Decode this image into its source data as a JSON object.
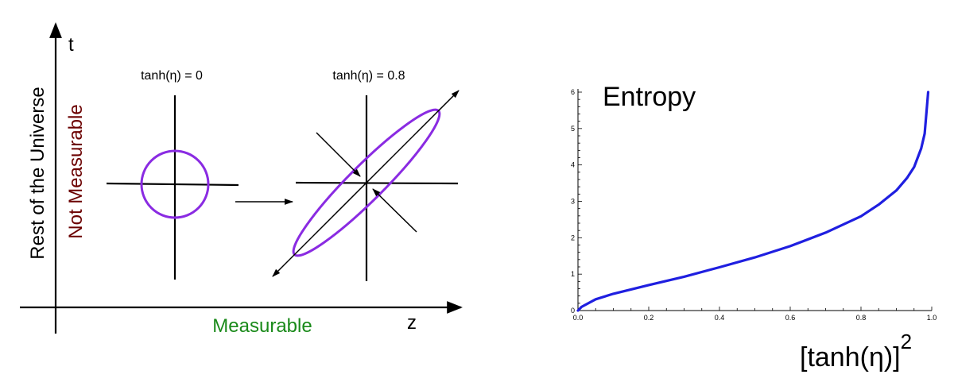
{
  "diagram": {
    "t_axis_label": "t",
    "z_axis_label": "z",
    "vertical_label_black": "Rest of the Universe",
    "vertical_label_red": "Not Measurable",
    "horizontal_label_green": "Measurable",
    "panel_left_label": "tanh(η) = 0",
    "panel_right_label": "tanh(η) = 0.8",
    "colors": {
      "ellipse": "#8a2be2",
      "red_label": "#6b0000",
      "green_label": "#1a8a1a",
      "axes": "#000000"
    }
  },
  "chart_data": {
    "type": "line",
    "title": "Entropy",
    "xlabel": "[tanh(η)]",
    "xlabel_superscript": "2",
    "xlim": [
      0.0,
      1.0
    ],
    "ylim": [
      0,
      6
    ],
    "x_ticks": [
      "0.0",
      "0.2",
      "0.4",
      "0.6",
      "0.8",
      "1.0"
    ],
    "y_ticks": [
      "0",
      "1",
      "2",
      "3",
      "4",
      "5",
      "6"
    ],
    "series": [
      {
        "color": "#1f1fe0",
        "x": [
          0.0,
          0.01,
          0.05,
          0.1,
          0.2,
          0.3,
          0.4,
          0.5,
          0.6,
          0.7,
          0.8,
          0.85,
          0.9,
          0.93,
          0.95,
          0.97,
          0.98,
          0.99
        ],
        "y": [
          0.0,
          0.1,
          0.31,
          0.46,
          0.7,
          0.93,
          1.19,
          1.46,
          1.77,
          2.14,
          2.59,
          2.91,
          3.3,
          3.64,
          3.94,
          4.45,
          4.86,
          6.0
        ]
      }
    ]
  }
}
